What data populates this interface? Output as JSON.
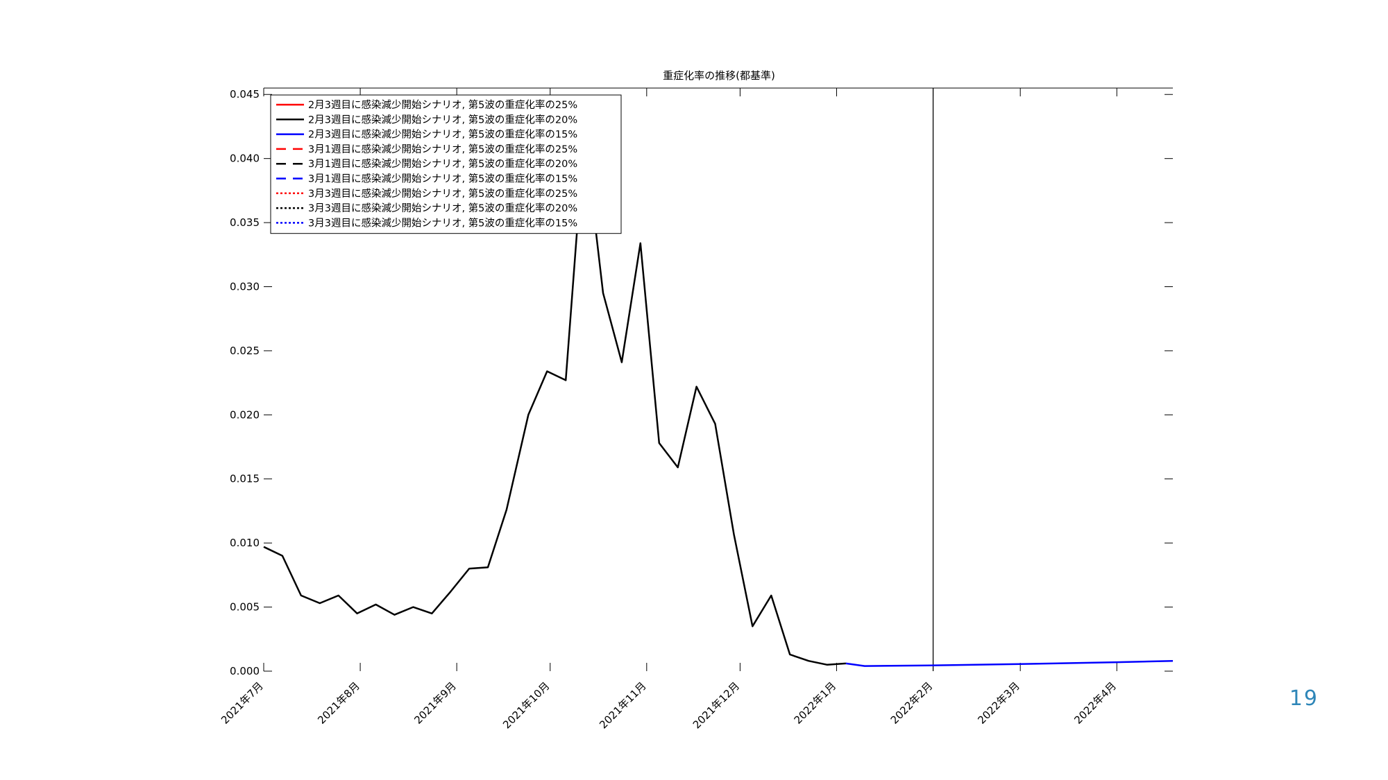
{
  "chart_data": {
    "type": "line",
    "title": "重症化率の推移(都基準)",
    "xlabel": "",
    "ylabel": "",
    "ylim": [
      0,
      0.0455
    ],
    "y_ticks": [
      "0.000",
      "0.005",
      "0.010",
      "0.015",
      "0.020",
      "0.025",
      "0.030",
      "0.035",
      "0.040",
      "0.045"
    ],
    "x_ticks": [
      {
        "label": "2021年7月",
        "date": "2021-07-01"
      },
      {
        "label": "2021年8月",
        "date": "2021-08-01"
      },
      {
        "label": "2021年9月",
        "date": "2021-09-01"
      },
      {
        "label": "2021年10月",
        "date": "2021-10-01"
      },
      {
        "label": "2021年11月",
        "date": "2021-11-01"
      },
      {
        "label": "2021年12月",
        "date": "2021-12-01"
      },
      {
        "label": "2022年1月",
        "date": "2022-01-01"
      },
      {
        "label": "2022年2月",
        "date": "2022-02-01"
      },
      {
        "label": "2022年3月",
        "date": "2022-03-01"
      },
      {
        "label": "2022年4月",
        "date": "2022-04-01"
      }
    ],
    "xlim": [
      "2021-07-01",
      "2022-04-19"
    ],
    "vertical_line": "2022-02-01",
    "grid": false,
    "legend_position": "top-left",
    "series": [
      {
        "name": "2月3週目に感染減少開始シナリオ, 第5波の重症化率の25%",
        "color": "#ff0000",
        "style": "solid",
        "points": []
      },
      {
        "name": "2月3週目に感染減少開始シナリオ, 第5波の重症化率の20%",
        "color": "#000000",
        "style": "solid",
        "points": [
          [
            "2021-07-01",
            0.0097
          ],
          [
            "2021-07-07",
            0.009
          ],
          [
            "2021-07-13",
            0.0059
          ],
          [
            "2021-07-19",
            0.0053
          ],
          [
            "2021-07-25",
            0.0059
          ],
          [
            "2021-07-31",
            0.0045
          ],
          [
            "2021-08-06",
            0.0052
          ],
          [
            "2021-08-12",
            0.0044
          ],
          [
            "2021-08-18",
            0.005
          ],
          [
            "2021-08-24",
            0.0045
          ],
          [
            "2021-08-30",
            0.0062
          ],
          [
            "2021-09-05",
            0.008
          ],
          [
            "2021-09-11",
            0.0081
          ],
          [
            "2021-09-17",
            0.0126
          ],
          [
            "2021-09-24",
            0.02
          ],
          [
            "2021-09-30",
            0.0234
          ],
          [
            "2021-10-06",
            0.0227
          ],
          [
            "2021-10-12",
            0.042
          ],
          [
            "2021-10-18",
            0.0295
          ],
          [
            "2021-10-24",
            0.0241
          ],
          [
            "2021-10-30",
            0.0334
          ],
          [
            "2021-11-05",
            0.0178
          ],
          [
            "2021-11-11",
            0.0159
          ],
          [
            "2021-11-17",
            0.0222
          ],
          [
            "2021-11-23",
            0.0193
          ],
          [
            "2021-11-29",
            0.0107
          ],
          [
            "2021-12-05",
            0.0035
          ],
          [
            "2021-12-11",
            0.0059
          ],
          [
            "2021-12-17",
            0.0013
          ],
          [
            "2021-12-23",
            0.0008
          ],
          [
            "2021-12-29",
            0.0005
          ],
          [
            "2022-01-04",
            0.0006
          ]
        ]
      },
      {
        "name": "2月3週目に感染減少開始シナリオ, 第5波の重症化率の15%",
        "color": "#0000ff",
        "style": "solid",
        "points": [
          [
            "2022-01-04",
            0.0006
          ],
          [
            "2022-01-10",
            0.0004
          ],
          [
            "2022-01-31",
            0.00045
          ],
          [
            "2022-03-01",
            0.00055
          ],
          [
            "2022-04-01",
            0.0007
          ],
          [
            "2022-04-19",
            0.0008
          ]
        ]
      },
      {
        "name": "3月1週目に感染減少開始シナリオ, 第5波の重症化率の25%",
        "color": "#ff0000",
        "style": "dashed",
        "points": []
      },
      {
        "name": "3月1週目に感染減少開始シナリオ, 第5波の重症化率の20%",
        "color": "#000000",
        "style": "dashed",
        "points": []
      },
      {
        "name": "3月1週目に感染減少開始シナリオ, 第5波の重症化率の15%",
        "color": "#0000ff",
        "style": "dashed",
        "points": []
      },
      {
        "name": "3月3週目に感染減少開始シナリオ, 第5波の重症化率の25%",
        "color": "#ff0000",
        "style": "dotted",
        "points": []
      },
      {
        "name": "3月3週目に感染減少開始シナリオ, 第5波の重症化率の20%",
        "color": "#000000",
        "style": "dotted",
        "points": []
      },
      {
        "name": "3月3週目に感染減少開始シナリオ, 第5波の重症化率の15%",
        "color": "#0000ff",
        "style": "dotted",
        "points": []
      }
    ]
  },
  "page_number": "19"
}
